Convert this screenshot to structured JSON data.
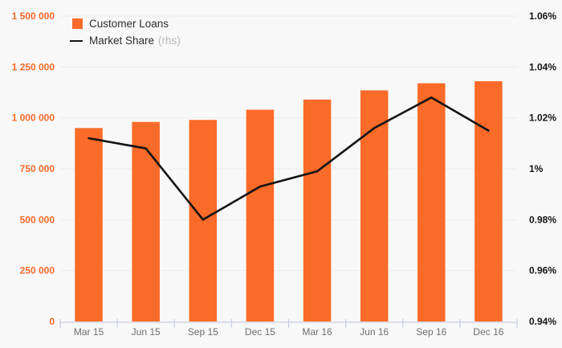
{
  "legend": {
    "items": [
      {
        "label": "Customer Loans",
        "type": "bar",
        "color": "#fa6a28"
      },
      {
        "label": "Market Share",
        "suffix": "(rhs)",
        "type": "line",
        "color": "#141414"
      }
    ]
  },
  "chart_data": {
    "type": "bar",
    "subtype": "bar+line dual-axis",
    "title": "",
    "categories": [
      "Mar 15",
      "Jun 15",
      "Sep 15",
      "Dec 15",
      "Mar 16",
      "Jun 16",
      "Sep 16",
      "Dec 16"
    ],
    "series": [
      {
        "name": "Customer Loans",
        "type": "bar",
        "axis": "left",
        "color": "#fa6a28",
        "values": [
          950000,
          980000,
          990000,
          1040000,
          1090000,
          1135000,
          1170000,
          1180000
        ]
      },
      {
        "name": "Market Share (rhs)",
        "type": "line",
        "axis": "right",
        "color": "#141414",
        "values": [
          1.012,
          1.008,
          0.98,
          0.993,
          0.999,
          1.016,
          1.028,
          1.015
        ],
        "unit": "%"
      }
    ],
    "left_axis": {
      "min": 0,
      "max": 1500000,
      "tick_step": 250000,
      "tick_labels": [
        "0",
        "250 000",
        "500 000",
        "750 000",
        "1 000 000",
        "1 250 000",
        "1 500 000"
      ],
      "label_color": "#fa6a28"
    },
    "right_axis": {
      "min": 0.94,
      "max": 1.06,
      "tick_step": 0.02,
      "tick_labels": [
        "0.94%",
        "0.96%",
        "0.98%",
        "1%",
        "1.02%",
        "1.04%",
        "1.06%"
      ],
      "label_color": "#141414"
    },
    "x_axis": {
      "label_color": "#6e6e6e"
    },
    "grid": true,
    "legend_position": "top-left",
    "colors": {
      "background": "#f8f8f8",
      "gridline": "#ececec",
      "axis_line": "#c9cde1",
      "bar": "#fa6a28",
      "line": "#141414"
    }
  }
}
